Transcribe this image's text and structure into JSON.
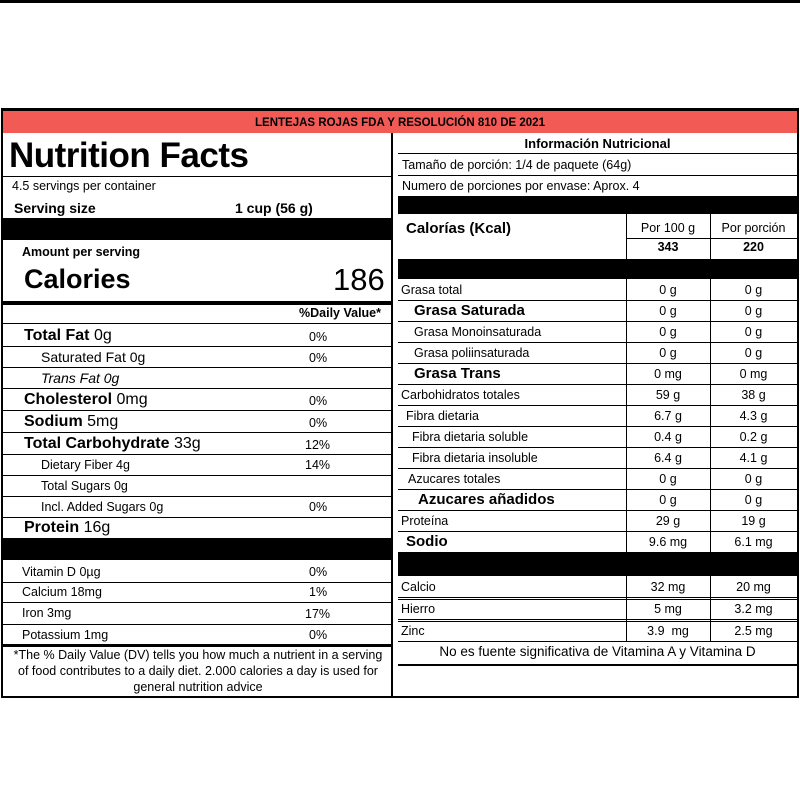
{
  "banner": "LENTEJAS ROJAS FDA Y RESOLUCIÓN 810 DE 2021",
  "english": {
    "title": "Nutrition Facts",
    "servings_per_container": "4.5 servings per container",
    "serving_size_label": "Serving size",
    "serving_size_value": "1 cup (56 g)",
    "amount_per_serving": "Amount per serving",
    "calories_label": "Calories",
    "calories_value": "186",
    "dv_header": "%Daily Value*",
    "nutrients": [
      {
        "name": "Total Fat",
        "amount": "0g",
        "dv": "0%"
      },
      {
        "name": "Saturated Fat",
        "amount": "0g",
        "dv": "0%"
      },
      {
        "name": "Trans Fat",
        "amount": "0g",
        "dv": ""
      },
      {
        "name": "Cholesterol",
        "amount": "0mg",
        "dv": "0%"
      },
      {
        "name": "Sodium",
        "amount": "5mg",
        "dv": "0%"
      },
      {
        "name": "Total Carbohydrate",
        "amount": "33g",
        "dv": "12%"
      },
      {
        "name": "Dietary Fiber",
        "amount": "4g",
        "dv": "14%"
      },
      {
        "name": "Total Sugars",
        "amount": "0g",
        "dv": ""
      },
      {
        "name": "Incl. Added Sugars",
        "amount": "0g",
        "dv": "0%"
      },
      {
        "name": "Protein",
        "amount": "16g",
        "dv": ""
      }
    ],
    "vitamins": [
      {
        "name": "Vitamin D",
        "amount": "0µg",
        "dv": "0%"
      },
      {
        "name": "Calcium",
        "amount": "18mg",
        "dv": "1%"
      },
      {
        "name": "Iron",
        "amount": "3mg",
        "dv": "17%"
      },
      {
        "name": "Potassium",
        "amount": "1mg",
        "dv": "0%"
      }
    ],
    "footnote_lines": [
      "*The % Daily Value (DV) tells you how much a nutrient in a serving",
      "of food contributes to a daily diet. 2.000 calories a day is used for",
      "general nutrition advice"
    ]
  },
  "spanish": {
    "title": "Información Nutricional",
    "portion_size": "Tamaño de porción: 1/4 de paquete (64g)",
    "portions_per_package": "Numero de porciones por envase: Aprox. 4",
    "calories_label": "Calorías (Kcal)",
    "col_100g": "Por 100 g",
    "col_portion": "Por porción",
    "calories_100g": "343",
    "calories_portion": "220",
    "rows": [
      {
        "name": "Grasa total",
        "per100": "0 g",
        "portion": "0 g"
      },
      {
        "name": "Grasa Saturada",
        "per100": "0 g",
        "portion": "0 g"
      },
      {
        "name": "Grasa Monoinsaturada",
        "per100": "0 g",
        "portion": "0 g"
      },
      {
        "name": "Grasa poliinsaturada",
        "per100": "0 g",
        "portion": "0 g"
      },
      {
        "name": "Grasa Trans",
        "per100": "0 mg",
        "portion": "0 mg"
      },
      {
        "name": "Carbohidratos totales",
        "per100": "59 g",
        "portion": "38 g"
      },
      {
        "name": "Fibra dietaria",
        "per100": "6.7 g",
        "portion": "4.3 g"
      },
      {
        "name": "Fibra dietaria soluble",
        "per100": "0.4 g",
        "portion": "0.2 g"
      },
      {
        "name": "Fibra dietaria insoluble",
        "per100": "6.4 g",
        "portion": "4.1 g"
      },
      {
        "name": "Azucares totales",
        "per100": "0 g",
        "portion": "0 g"
      },
      {
        "name": "Azucares añadidos",
        "per100": "0 g",
        "portion": "0 g"
      },
      {
        "name": "Proteína",
        "per100": "29 g",
        "portion": "19 g"
      },
      {
        "name": "Sodio",
        "per100": "9.6 mg",
        "portion": "6.1 mg"
      }
    ],
    "minerals": [
      {
        "name": "Calcio",
        "per100": "32 mg",
        "portion": "20 mg"
      },
      {
        "name": "Hierro",
        "per100": "5 mg",
        "portion": "3.2 mg"
      },
      {
        "name": "Zinc",
        "per100": "3.9  mg",
        "portion": "2.5 mg"
      }
    ],
    "footer": "No es fuente significativa de Vitamina A y Vitamina D"
  }
}
